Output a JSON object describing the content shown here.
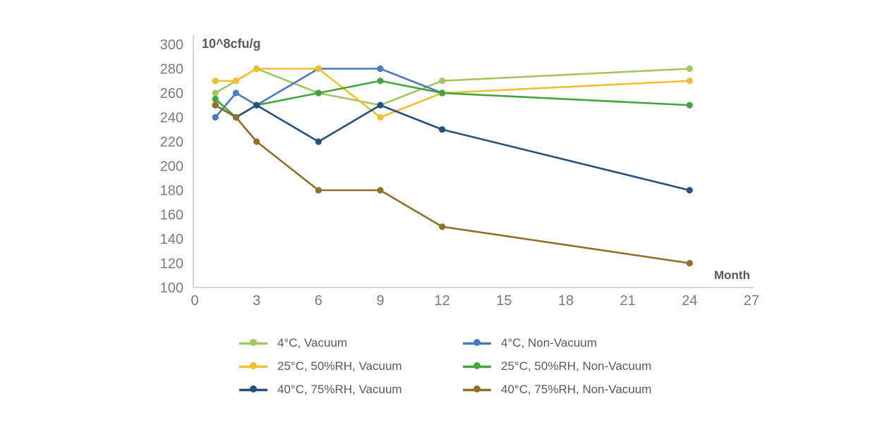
{
  "chart_data": {
    "type": "line",
    "title": "10^8cfu/g",
    "xlabel": "Month",
    "ylabel": "10^8cfu/g",
    "x_months": [
      1,
      2,
      3,
      6,
      9,
      12,
      24
    ],
    "xlim": [
      0,
      27
    ],
    "ylim": [
      100,
      300
    ],
    "x_ticks": [
      0,
      3,
      6,
      9,
      12,
      15,
      18,
      21,
      24,
      27
    ],
    "y_ticks": [
      300,
      280,
      260,
      240,
      220,
      200,
      180,
      160,
      140,
      120,
      100
    ],
    "grid": false,
    "legend_position": "bottom",
    "marker": "circle",
    "series": [
      {
        "name": "4°C, Vacuum",
        "color": "#A3C85F",
        "values": [
          260,
          270,
          280,
          260,
          250,
          270,
          280
        ]
      },
      {
        "name": "4°C, Non-Vacuum",
        "color": "#4E79BE",
        "values": [
          240,
          260,
          250,
          280,
          280,
          260,
          null
        ]
      },
      {
        "name": "25°C, 50%RH, Vacuum",
        "color": "#F2BF33",
        "values": [
          270,
          270,
          280,
          280,
          240,
          260,
          270
        ]
      },
      {
        "name": "25°C, 50%RH, Non-Vacuum",
        "color": "#45A43F",
        "values": [
          255,
          240,
          250,
          260,
          270,
          260,
          250
        ]
      },
      {
        "name": "40°C, 75%RH, Vacuum",
        "color": "#27507D",
        "values": [
          250,
          240,
          250,
          220,
          250,
          230,
          180
        ]
      },
      {
        "name": "40°C, 75%RH, Non-Vacuum",
        "color": "#8E7127",
        "values": [
          250,
          240,
          220,
          180,
          180,
          150,
          120
        ]
      }
    ]
  },
  "colors": {
    "background": "#FFFFFF",
    "axis_line": "#C9C9C9",
    "tick_label": "#7B7B7B",
    "text_label": "#595959"
  }
}
